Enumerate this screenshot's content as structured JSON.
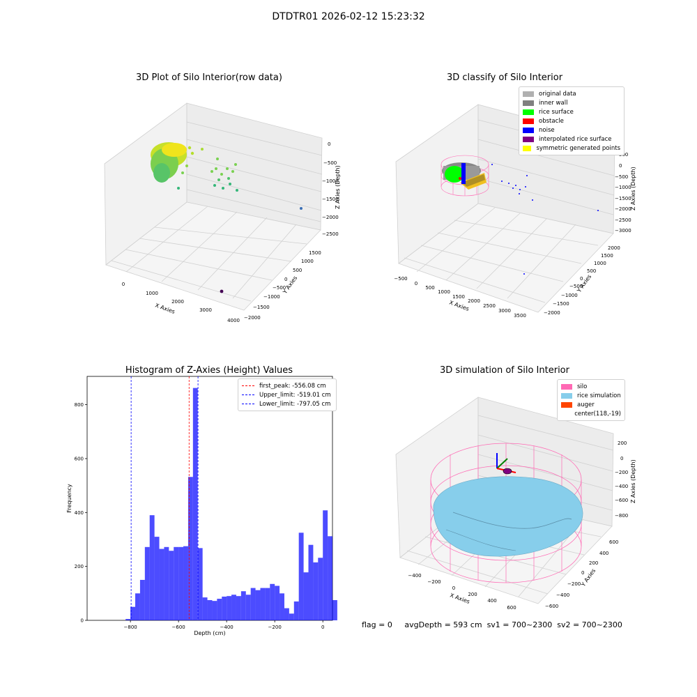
{
  "figure_title": "DTDTR01 2026-02-12 15:23:32",
  "footer": {
    "flag": "flag = 0",
    "avg_depth": "avgDepth = 593 cm",
    "sv1": "sv1 = 700~2300",
    "sv2": "sv2 = 700~2300"
  },
  "panel1": {
    "title": "3D Plot of Silo Interior(row data)",
    "xlabel": "X Axies",
    "ylabel": "Y Axies",
    "zlabel": "Z Axies (Depth)",
    "xticks": [
      "0",
      "1000",
      "2000",
      "3000",
      "4000"
    ],
    "yticks": [
      "1500",
      "1000",
      "500",
      "0",
      "−500",
      "−1000",
      "−1500",
      "−2000"
    ],
    "zticks": [
      "0",
      "−500",
      "−1000",
      "−1500",
      "−2000",
      "−2500"
    ]
  },
  "panel2": {
    "title": "3D classify of Silo Interior",
    "xlabel": "X Axies",
    "ylabel": "Y Axies",
    "zlabel": "Z Axies (Depth)",
    "xticks": [
      "−500",
      "0",
      "500",
      "1000",
      "1500",
      "2000",
      "2500",
      "3000",
      "3500"
    ],
    "yticks": [
      "2000",
      "1500",
      "1000",
      "500",
      "0",
      "−500",
      "−1000",
      "−1500",
      "−2000"
    ],
    "zticks": [
      "500",
      "0",
      "−500",
      "−1000",
      "−1500",
      "−2000",
      "−2500",
      "−3000"
    ],
    "legend": [
      {
        "label": "original data",
        "color": "#b0b0b0"
      },
      {
        "label": "inner wall",
        "color": "#808080"
      },
      {
        "label": "rice surface",
        "color": "#00ff00"
      },
      {
        "label": "obstacle",
        "color": "#ff0000"
      },
      {
        "label": "noise",
        "color": "#0000ff"
      },
      {
        "label": "interpolated rice surface",
        "color": "#800080"
      },
      {
        "label": "symmetric generated points",
        "color": "#ffff00"
      }
    ]
  },
  "panel4": {
    "title": "3D simulation of Silo Interior",
    "xlabel": "X Axies",
    "ylabel": "Y Axies",
    "zlabel": "Z Axies (Depth)",
    "xticks": [
      "−400",
      "−200",
      "0",
      "200",
      "400",
      "600"
    ],
    "yticks": [
      "600",
      "400",
      "200",
      "0",
      "−200",
      "−400",
      "−600"
    ],
    "zticks": [
      "200",
      "0",
      "−200",
      "−400",
      "−600",
      "−800"
    ],
    "legend": [
      {
        "label": "silo",
        "color": "#ff69b4"
      },
      {
        "label": "rice simulation",
        "color": "#87ceeb"
      },
      {
        "label": "auger",
        "color": "#ff4500"
      },
      {
        "label": "center(118,-19)",
        "color": ""
      }
    ]
  },
  "chart_data": {
    "type": "bar",
    "title": "Histogram of Z-Axies (Height) Values",
    "xlabel": "Depth (cm)",
    "ylabel": "Frequency",
    "xlim": [
      -980,
      40
    ],
    "ylim": [
      0,
      905
    ],
    "xticks": [
      -800,
      -600,
      -400,
      -200,
      0
    ],
    "xtick_labels": [
      "−800",
      "−600",
      "−400",
      "−200",
      "0"
    ],
    "yticks": [
      0,
      200,
      400,
      600,
      800
    ],
    "bin_start": -820,
    "bin_width": 20,
    "values": [
      5,
      50,
      100,
      150,
      272,
      390,
      310,
      265,
      272,
      258,
      272,
      272,
      275,
      532,
      862,
      268,
      85,
      75,
      72,
      80,
      88,
      90,
      95,
      90,
      108,
      95,
      120,
      112,
      120,
      120,
      135,
      128,
      100,
      45,
      25,
      70,
      325,
      178,
      280,
      215,
      232,
      408,
      312,
      75
    ],
    "bar_color": "#0000ff",
    "lines": [
      {
        "x": -556.08,
        "label": "first_peak: -556.08 cm",
        "color": "#ff0000"
      },
      {
        "x": -519.01,
        "label": "Upper_limit: -519.01 cm",
        "color": "#0000ff"
      },
      {
        "x": -797.05,
        "label": "Lower_limit: -797.05 cm",
        "color": "#0000ff"
      }
    ],
    "legend_position": "upper right"
  }
}
